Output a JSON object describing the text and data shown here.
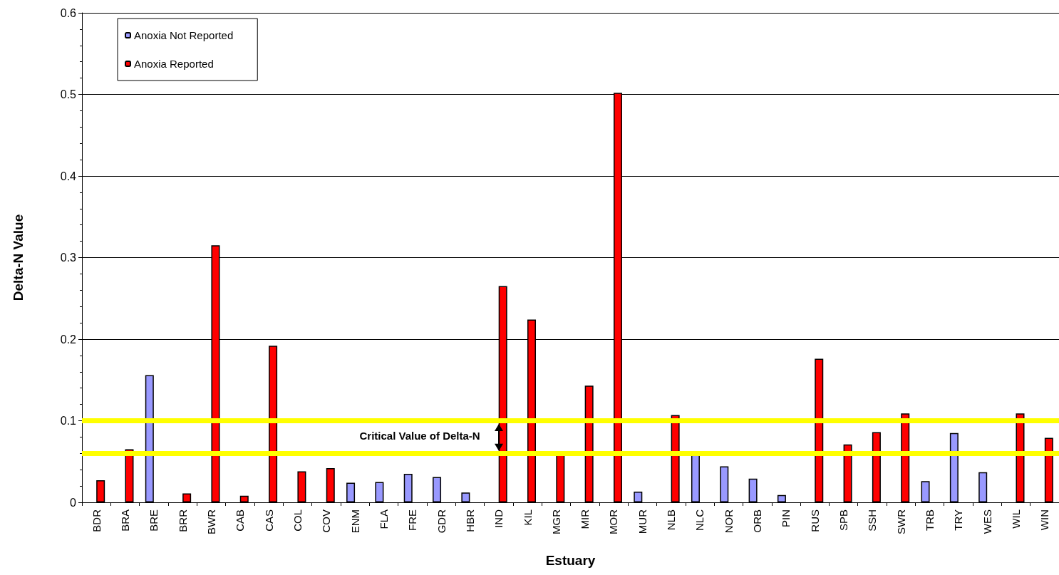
{
  "chart_data": {
    "type": "bar",
    "xlabel": "Estuary",
    "ylabel": "Delta-N Value",
    "categories": [
      "BDR",
      "BRA",
      "BRE",
      "BRR",
      "BWR",
      "CAB",
      "CAS",
      "COL",
      "COV",
      "ENM",
      "FLA",
      "FRE",
      "GDR",
      "HBR",
      "IND",
      "KIL",
      "MGR",
      "MIR",
      "MOR",
      "MUR",
      "NLB",
      "NLC",
      "NOR",
      "ORB",
      "PIN",
      "RUS",
      "SPB",
      "SSH",
      "SWR",
      "TRB",
      "TRY",
      "WES",
      "WIL",
      "WIN"
    ],
    "series": [
      {
        "name": "Anoxia Not Reported",
        "color": "#9999ff",
        "values": [
          null,
          null,
          0.156,
          null,
          null,
          null,
          null,
          null,
          null,
          0.024,
          0.025,
          0.035,
          0.031,
          0.012,
          null,
          null,
          null,
          null,
          null,
          0.013,
          null,
          0.06,
          0.044,
          0.029,
          0.009,
          null,
          null,
          null,
          null,
          0.026,
          0.085,
          0.037,
          null,
          null
        ]
      },
      {
        "name": "Anoxia Reported",
        "color": "#ff0000",
        "values": [
          0.027,
          0.065,
          null,
          0.011,
          0.315,
          0.008,
          0.192,
          0.038,
          0.042,
          null,
          null,
          null,
          null,
          null,
          0.265,
          0.224,
          0.06,
          0.143,
          0.502,
          null,
          0.107,
          null,
          null,
          null,
          null,
          0.176,
          0.071,
          0.086,
          0.109,
          null,
          null,
          null,
          0.109,
          0.079
        ]
      }
    ],
    "ylim": [
      0,
      0.6
    ],
    "yticks": [
      0,
      0.1,
      0.2,
      0.3,
      0.4,
      0.5,
      0.6
    ],
    "grid": "y",
    "legend": "top left",
    "ref_lines": [
      {
        "axis": "y",
        "value": 0.1,
        "color": "#ffff00"
      },
      {
        "axis": "y",
        "value": 0.06,
        "color": "#ffff00"
      }
    ],
    "annotations": [
      "Critical Value of Delta-N"
    ]
  }
}
